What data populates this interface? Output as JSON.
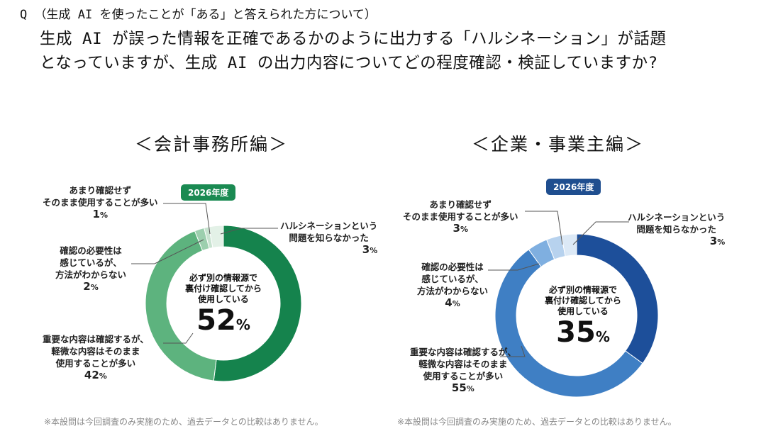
{
  "question": {
    "prefix": "Q",
    "line1": "（生成 AI を使ったことが「ある」と答えられた方について）",
    "line2": "生成 AI が誤った情報を正確であるかのように出力する「ハルシネーション」が話題",
    "line3": "となっていますが、生成 AI の出力内容についてどの程度確認・検証していますか?"
  },
  "panels": [
    {
      "title": "＜会計事務所編＞",
      "badge": "2026年度",
      "accent": "#1a8a52",
      "center_label": [
        "必ず別の情報源で",
        "裏付け確認してから",
        "使用している"
      ],
      "center_value": "52",
      "unit": "%",
      "labels": {
        "unaware": [
          "ハルシネーションという",
          "問題を知らなかった"
        ],
        "unaware_pct": "3",
        "skip": [
          "あまり確認せず",
          "そのまま使用することが多い"
        ],
        "skip_pct": "1",
        "unsure": [
          "確認の必要性は",
          "感じているが、",
          "方法がわからない"
        ],
        "unsure_pct": "2",
        "partial": [
          "重要な内容は確認するが、",
          "軽微な内容はそのまま",
          "使用することが多い"
        ],
        "partial_pct": "42"
      },
      "note": "※本設問は今回調査のみ実施のため、過去データとの比較はありません。"
    },
    {
      "title": "＜企業・事業主編＞",
      "badge": "2026年度",
      "accent": "#1f5fa6",
      "center_label": [
        "必ず別の情報源で",
        "裏付け確認してから",
        "使用している"
      ],
      "center_value": "35",
      "unit": "%",
      "labels": {
        "unaware": [
          "ハルシネーションという",
          "問題を知らなかった"
        ],
        "unaware_pct": "3",
        "skip": [
          "あまり確認せず",
          "そのまま使用することが多い"
        ],
        "skip_pct": "3",
        "unsure": [
          "確認の必要性は",
          "感じているが、",
          "方法がわからない"
        ],
        "unsure_pct": "4",
        "partial": [
          "重要な内容は確認するが、",
          "軽微な内容はそのまま",
          "使用することが多い"
        ],
        "partial_pct": "55"
      },
      "note": "※本設問は今回調査のみ実施のため、過去データとの比較はありません。"
    }
  ],
  "chart_data": [
    {
      "type": "pie",
      "title": "＜会計事務所編＞",
      "series_label": "2026年度",
      "categories": [
        "必ず別の情報源で裏付け確認してから使用している",
        "重要な内容は確認するが、軽微な内容はそのまま使用することが多い",
        "確認の必要性は感じているが、方法がわからない",
        "あまり確認せずそのまま使用することが多い",
        "ハルシネーションという問題を知らなかった"
      ],
      "values": [
        52,
        42,
        2,
        1,
        3
      ],
      "colors": [
        "#15834d",
        "#5db37e",
        "#9ccfae",
        "#c8e3d0",
        "#e3f1e7"
      ]
    },
    {
      "type": "pie",
      "title": "＜企業・事業主編＞",
      "series_label": "2026年度",
      "categories": [
        "必ず別の情報源で裏付け確認してから使用している",
        "重要な内容は確認するが、軽微な内容はそのまま使用することが多い",
        "確認の必要性は感じているが、方法がわからない",
        "あまり確認せずそのまま使用することが多い",
        "ハルシネーションという問題を知らなかった"
      ],
      "values": [
        35,
        55,
        4,
        3,
        3
      ],
      "colors": [
        "#1d4f9a",
        "#3f7fc4",
        "#7fafe0",
        "#b7d2ee",
        "#dce9f6"
      ]
    }
  ]
}
